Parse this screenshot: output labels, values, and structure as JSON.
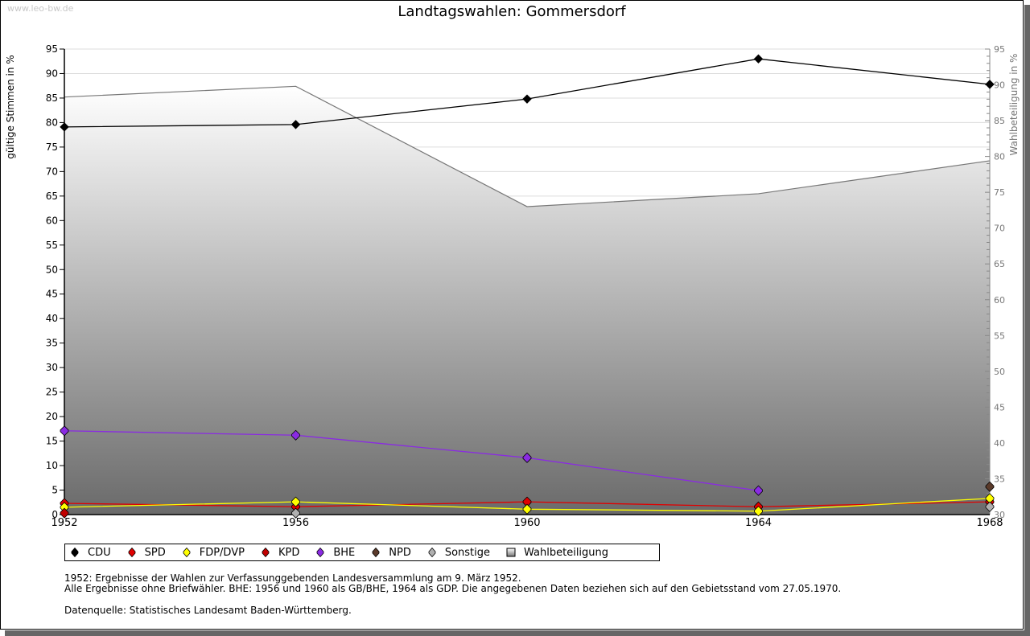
{
  "watermark": "www.leo-bw.de",
  "chart_data": {
    "type": "line",
    "title": "Landtagswahlen: Gommersdorf",
    "xlabel": "",
    "ylabel": "gültige Stimmen in %",
    "y2label": "Wahlbeteiligung in %",
    "ylim": [
      0,
      95
    ],
    "y2lim": [
      30,
      95
    ],
    "x": [
      1952,
      1956,
      1960,
      1964,
      1968
    ],
    "x_tick_labels": [
      "1952",
      "1956",
      "1960",
      "1964",
      "1968"
    ],
    "y_tick_labels": [
      "0",
      "5",
      "10",
      "15",
      "20",
      "25",
      "30",
      "35",
      "40",
      "45",
      "50",
      "55",
      "60",
      "65",
      "70",
      "75",
      "80",
      "85",
      "90",
      "95"
    ],
    "y2_tick_labels": [
      "30",
      "35",
      "40",
      "45",
      "50",
      "55",
      "60",
      "65",
      "70",
      "75",
      "80",
      "85",
      "90",
      "95"
    ],
    "grid": true,
    "legend_position": "bottom",
    "series": [
      {
        "name": "CDU",
        "color": "#000000",
        "values": [
          79.1,
          79.6,
          84.8,
          93.0,
          87.8
        ]
      },
      {
        "name": "SPD",
        "color": "#e00000",
        "values": [
          2.3,
          1.6,
          2.6,
          1.6,
          2.6
        ]
      },
      {
        "name": "FDP/DVP",
        "color": "#ffff00",
        "values": [
          1.5,
          2.6,
          1.1,
          0.7,
          3.3
        ]
      },
      {
        "name": "KPD",
        "color": "#c00000",
        "values": [
          0.3,
          null,
          null,
          null,
          null
        ]
      },
      {
        "name": "BHE",
        "color": "#8a2be2",
        "values": [
          17.1,
          16.2,
          11.6,
          4.9,
          null
        ]
      },
      {
        "name": "NPD",
        "color": "#5a3a2a",
        "values": [
          null,
          null,
          null,
          null,
          5.7
        ]
      },
      {
        "name": "Sonstige",
        "color": "#b0b0b0",
        "values": [
          null,
          0.3,
          null,
          null,
          1.6
        ]
      }
    ],
    "turnout": {
      "name": "Wahlbeteiligung",
      "axis": "right",
      "type": "area",
      "values": [
        88.3,
        89.8,
        73.0,
        74.8,
        79.4
      ]
    }
  },
  "legend": {
    "items": [
      {
        "label": "CDU",
        "color": "#000000",
        "shape": "diamond"
      },
      {
        "label": "SPD",
        "color": "#e00000",
        "shape": "diamond"
      },
      {
        "label": "FDP/DVP",
        "color": "#ffff00",
        "shape": "diamond"
      },
      {
        "label": "KPD",
        "color": "#c00000",
        "shape": "diamond"
      },
      {
        "label": "BHE",
        "color": "#8a2be2",
        "shape": "diamond"
      },
      {
        "label": "NPD",
        "color": "#5a3a2a",
        "shape": "diamond"
      },
      {
        "label": "Sonstige",
        "color": "#b0b0b0",
        "shape": "diamond"
      },
      {
        "label": "Wahlbeteiligung",
        "color": "#888888",
        "shape": "square"
      }
    ]
  },
  "notes": {
    "line1": "1952: Ergebnisse der Wahlen zur Verfassunggebenden Landesversammlung am 9. März 1952.",
    "line2": "Alle Ergebnisse ohne Briefwähler. BHE: 1956 und 1960 als GB/BHE, 1964 als GDP. Die angegebenen Daten beziehen sich auf den Gebietsstand vom 27.05.1970.",
    "source": "Datenquelle: Statistisches Landesamt Baden-Württemberg."
  }
}
